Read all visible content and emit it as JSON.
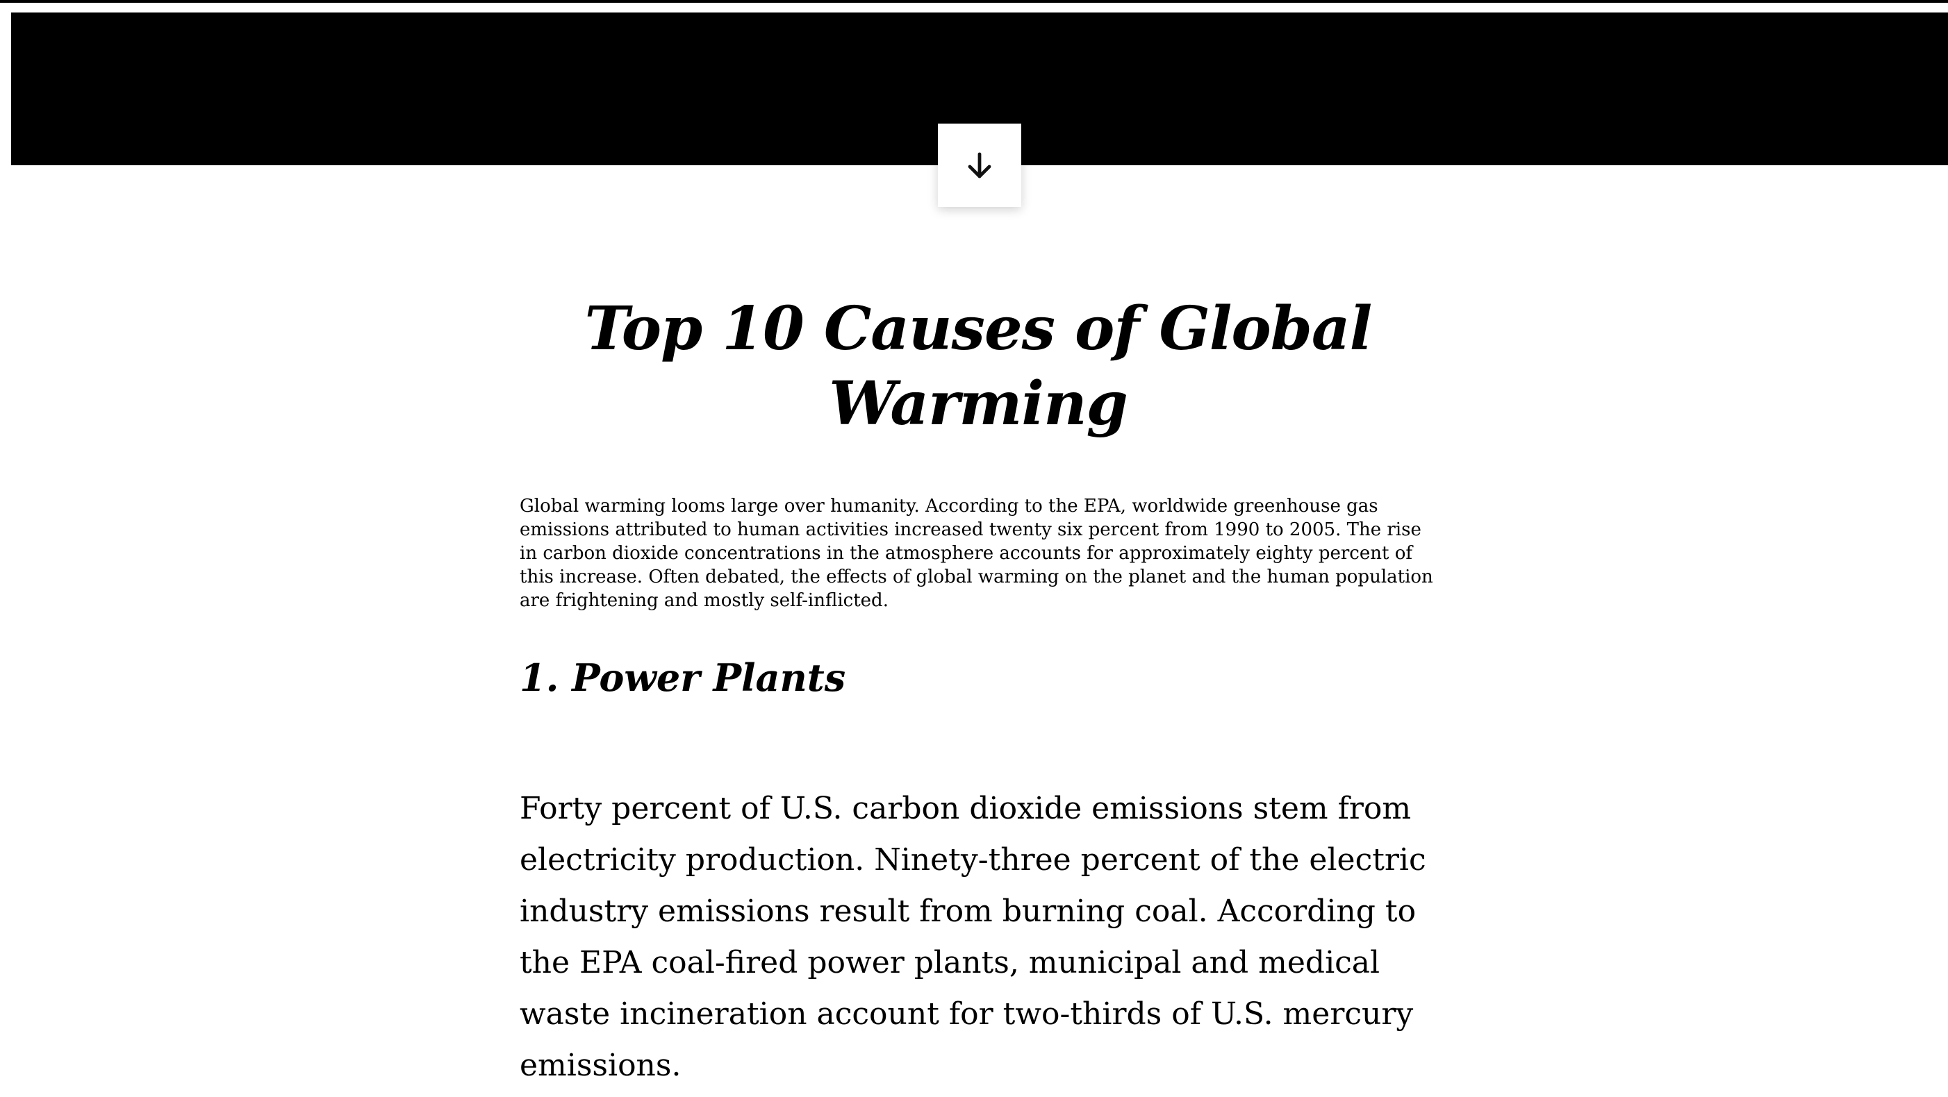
{
  "hero": {
    "icon": "arrow-down-icon"
  },
  "article": {
    "title": "Top 10 Causes of Global Warming",
    "intro": "Global warming looms large over humanity. According to the EPA, worldwide greenhouse gas emissions attributed to human activities increased twenty six percent from 1990 to 2005. The rise in carbon dioxide concentrations in the atmosphere accounts for approximately eighty percent of this increase. Often debated, the effects of global warming on the planet and the human population are frightening and mostly self-inflicted.",
    "sections": [
      {
        "heading": "1. Power Plants",
        "text": "Forty percent of U.S. carbon dioxide emissions stem from electricity production. Ninety-three percent of the electric industry emissions result from burning coal. According to the EPA coal-fired power plants, municipal and medical waste incineration account for two-thirds of U.S. mercury emissions."
      }
    ]
  }
}
